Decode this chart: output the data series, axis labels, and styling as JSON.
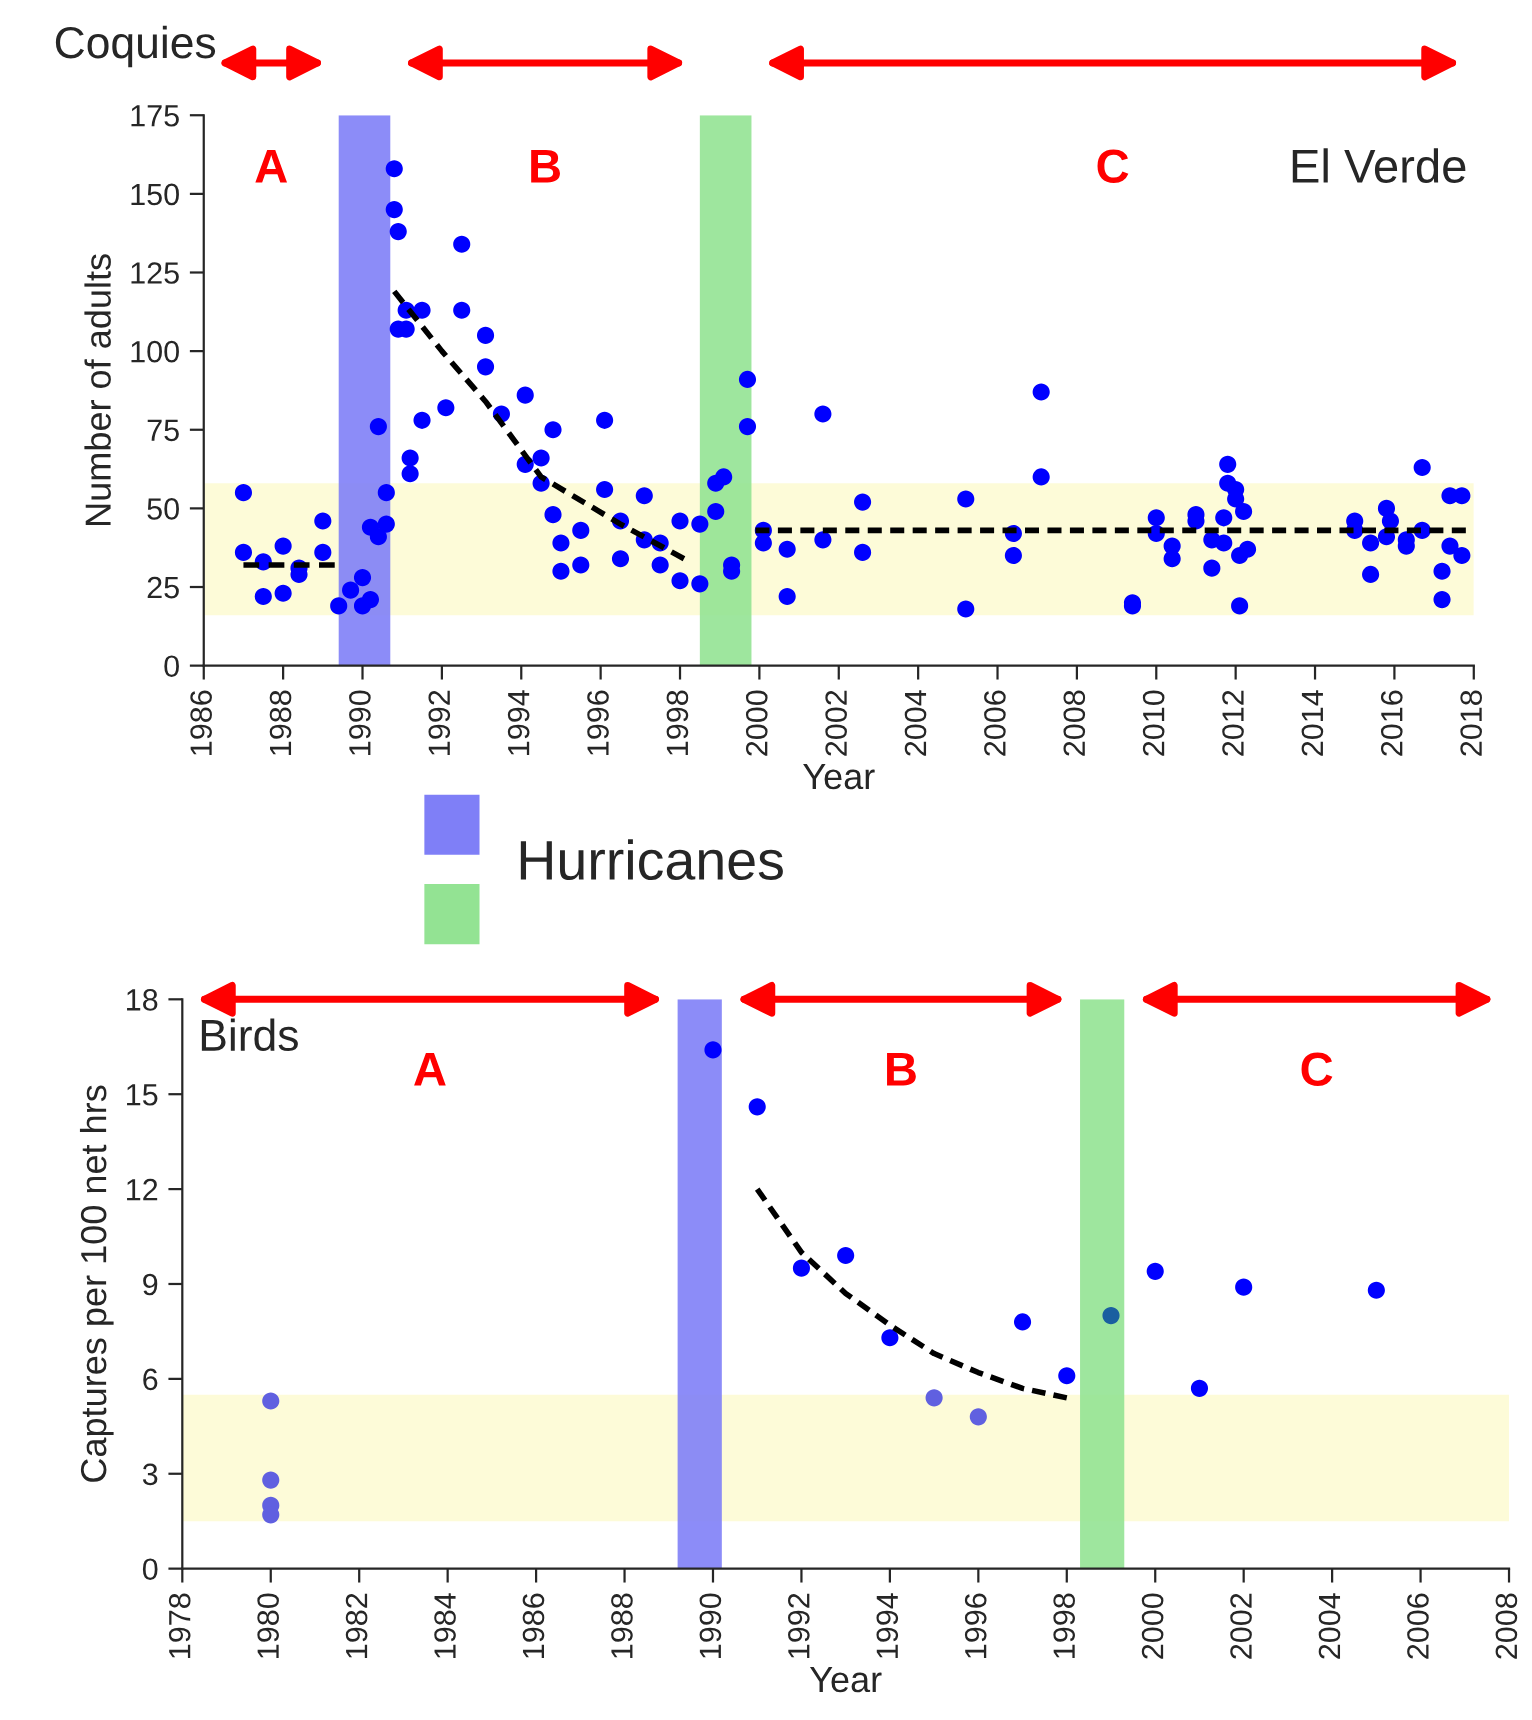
{
  "chart_data": [
    {
      "type": "scatter",
      "title": "Coquies",
      "xlabel": "Year",
      "ylabel": "Number of adults",
      "legend_title": "Hurricanes",
      "annotations": [
        "A",
        "B",
        "C",
        "El Verde"
      ],
      "xlim": [
        1986,
        2018
      ],
      "xticks": [
        1986,
        1988,
        1990,
        1992,
        1994,
        1996,
        1998,
        2000,
        2002,
        2004,
        2006,
        2008,
        2010,
        2012,
        2014,
        2016,
        2018
      ],
      "ylim": [
        0,
        175
      ],
      "yticks": [
        0,
        25,
        50,
        75,
        100,
        125,
        150,
        175
      ],
      "bands": [
        {
          "axis": "y",
          "from": 16,
          "to": 58,
          "color": "#fdfbd8"
        },
        {
          "axis": "x",
          "from": 1989.4,
          "to": 1990.7,
          "color": "#7f7ff7"
        },
        {
          "axis": "x",
          "from": 1998.5,
          "to": 1999.8,
          "color": "#93e393"
        }
      ],
      "series": [
        {
          "marker": "circle",
          "color": "#0000ff",
          "x": [
            1987.0,
            1987.0,
            1987.5,
            1987.5,
            1988.0,
            1988.0,
            1988.4,
            1988.4,
            1989.0,
            1989.0,
            1989.4,
            1989.7,
            1990.0,
            1990.0,
            1990.2,
            1990.2,
            1990.4,
            1990.4,
            1990.6,
            1990.6,
            1990.8,
            1990.8,
            1990.9,
            1990.9,
            1991.1,
            1991.1,
            1991.2,
            1991.2,
            1991.5,
            1991.5,
            1992.1,
            1992.5,
            1992.5,
            1993.1,
            1993.1,
            1993.5,
            1994.1,
            1994.1,
            1994.5,
            1994.5,
            1994.8,
            1994.8,
            1995.0,
            1995.0,
            1995.5,
            1995.5,
            1996.1,
            1996.1,
            1996.5,
            1996.5,
            1997.1,
            1997.1,
            1997.5,
            1997.5,
            1998.0,
            1998.0,
            1998.5,
            1998.5,
            1998.9,
            1998.9,
            1999.1,
            1999.3,
            1999.3,
            1999.7,
            1999.7,
            2000.1,
            2000.1,
            2000.7,
            2000.7,
            2001.6,
            2001.6,
            2002.6,
            2002.6,
            2005.2,
            2005.2,
            2006.4,
            2006.4,
            2007.1,
            2007.1,
            2009.4,
            2009.4,
            2010.0,
            2010.0,
            2010.4,
            2010.4,
            2011.0,
            2011.0,
            2011.4,
            2011.4,
            2011.7,
            2011.7,
            2011.8,
            2011.8,
            2012.0,
            2012.0,
            2012.1,
            2012.1,
            2012.2,
            2012.3,
            2015.0,
            2015.0,
            2015.4,
            2015.4,
            2015.8,
            2015.8,
            2015.9,
            2016.3,
            2016.3,
            2016.7,
            2016.7,
            2017.2,
            2017.2,
            2017.4,
            2017.4,
            2017.7,
            2017.7
          ],
          "values": [
            55,
            36,
            33,
            22,
            38,
            23,
            31,
            29,
            46,
            36,
            19,
            24,
            28,
            19,
            21,
            44,
            41,
            76,
            55,
            45,
            158,
            145,
            138,
            107,
            113,
            107,
            66,
            61,
            113,
            78,
            82,
            134,
            113,
            105,
            95,
            80,
            86,
            64,
            66,
            58,
            75,
            48,
            39,
            30,
            43,
            32,
            78,
            56,
            46,
            34,
            54,
            40,
            39,
            32,
            46,
            27,
            45,
            26,
            58,
            49,
            60,
            32,
            30,
            91,
            76,
            43,
            39,
            37,
            22,
            80,
            40,
            52,
            36,
            53,
            18,
            42,
            35,
            87,
            60,
            20,
            19,
            47,
            42,
            38,
            34,
            48,
            46,
            40,
            31,
            47,
            39,
            64,
            58,
            56,
            53,
            35,
            19,
            49,
            37,
            46,
            43,
            39,
            29,
            50,
            41,
            46,
            40,
            38,
            63,
            43,
            30,
            21,
            54,
            38,
            54,
            35
          ]
        },
        {
          "type": "line",
          "marker": "none",
          "line_style": "dashed",
          "color": "#000000",
          "x": [
            1987.0,
            1989.3
          ],
          "values": [
            32,
            32
          ]
        },
        {
          "type": "line",
          "marker": "none",
          "line_style": "dashed",
          "color": "#000000",
          "x": [
            1990.8,
            1992,
            1993.1,
            1994.5,
            1996.5,
            1998.1
          ],
          "values": [
            119,
            100,
            84,
            60,
            45,
            34
          ]
        },
        {
          "type": "line",
          "marker": "none",
          "line_style": "dashed",
          "color": "#000000",
          "x": [
            1999.9,
            2017.8
          ],
          "values": [
            43,
            43
          ]
        }
      ]
    },
    {
      "type": "scatter",
      "title": "Birds",
      "xlabel": "Year",
      "ylabel": "Captures per 100 net hrs",
      "annotations": [
        "A",
        "B",
        "C"
      ],
      "xlim": [
        1978,
        2008
      ],
      "xticks": [
        1978,
        1980,
        1982,
        1984,
        1986,
        1988,
        1990,
        1992,
        1994,
        1996,
        1998,
        2000,
        2002,
        2004,
        2006,
        2008
      ],
      "ylim": [
        0,
        18
      ],
      "yticks": [
        0,
        3,
        6,
        9,
        12,
        15,
        18
      ],
      "bands": [
        {
          "axis": "y",
          "from": 1.5,
          "to": 5.5,
          "color": "#fdfbd8"
        },
        {
          "axis": "x",
          "from": 1989.2,
          "to": 1990.2,
          "color": "#7f7ff7"
        },
        {
          "axis": "x",
          "from": 1998.3,
          "to": 1999.3,
          "color": "#93e393"
        }
      ],
      "series": [
        {
          "marker": "circle",
          "x": [
            1980,
            1980,
            1980,
            1980,
            1990,
            1991,
            1992,
            1993,
            1994,
            1995,
            1996,
            1997,
            1998,
            1999,
            2000,
            2001,
            2002,
            2005
          ],
          "values": [
            5.3,
            2.8,
            2.0,
            1.7,
            16.4,
            14.6,
            9.5,
            9.9,
            7.3,
            5.4,
            4.8,
            7.8,
            6.1,
            8.0,
            9.4,
            5.7,
            8.9,
            8.8
          ],
          "colors": [
            "#6060e0",
            "#6060e0",
            "#6060e0",
            "#6060e0",
            "#0000ff",
            "#0000ff",
            "#0000ff",
            "#0000ff",
            "#0000ff",
            "#6060e0",
            "#6060e0",
            "#0000ff",
            "#0000ff",
            "#1a5fa0",
            "#0000ff",
            "#0000ff",
            "#0000ff",
            "#0000ff"
          ]
        },
        {
          "type": "line",
          "marker": "none",
          "line_style": "dashed",
          "color": "#000000",
          "x": [
            1991,
            1992,
            1993,
            1994,
            1995,
            1996,
            1997,
            1998
          ],
          "values": [
            12.0,
            10.0,
            8.7,
            7.7,
            6.8,
            6.2,
            5.7,
            5.4
          ]
        }
      ]
    }
  ]
}
